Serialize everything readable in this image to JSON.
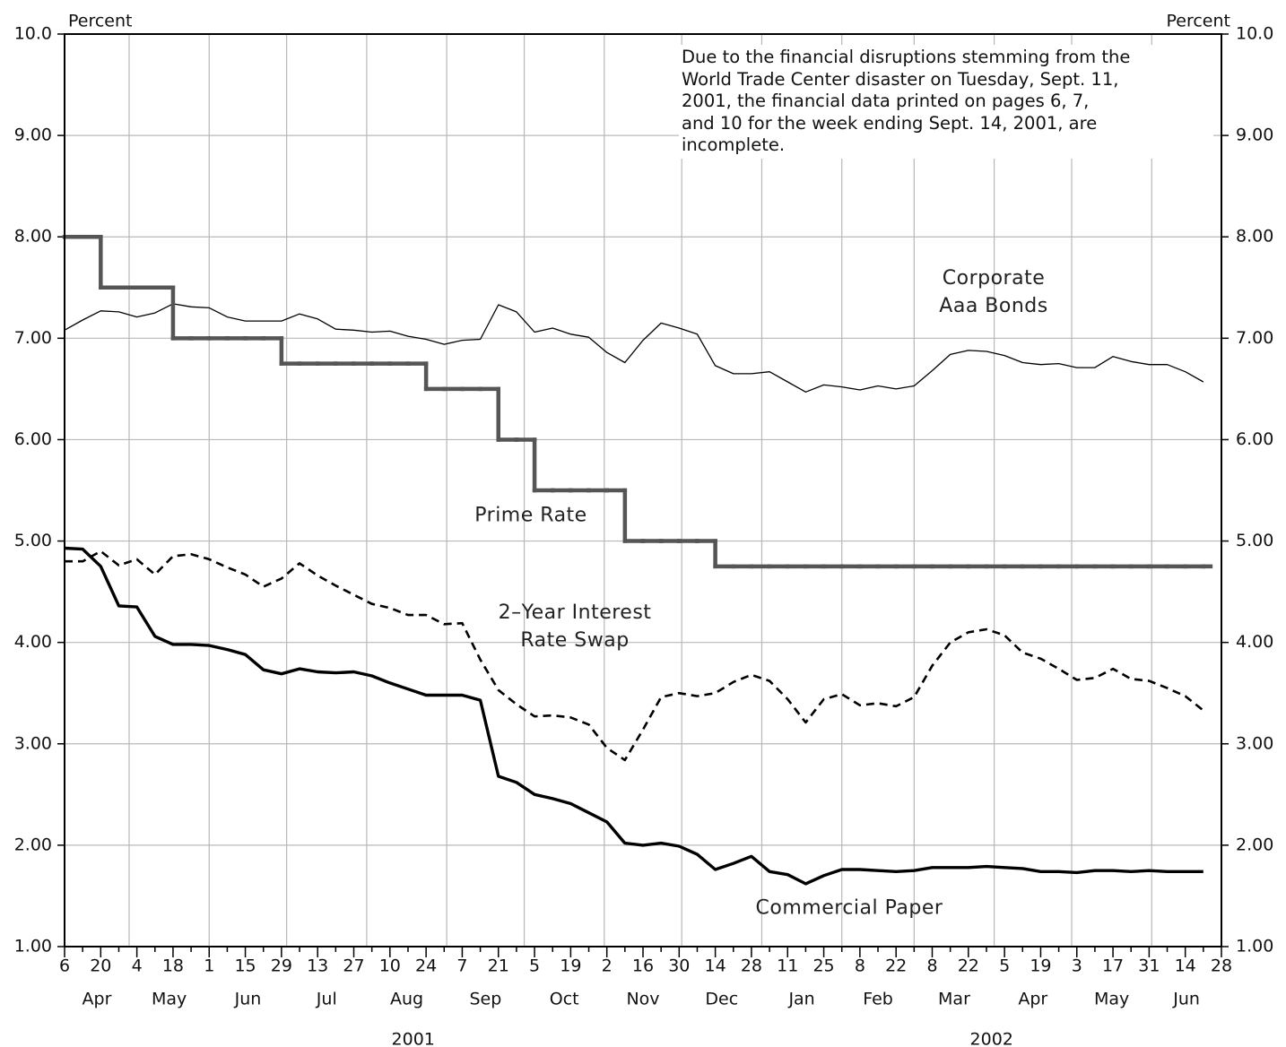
{
  "chart_data": {
    "type": "line",
    "ylabel": "Percent",
    "y2label": "Percent",
    "annotation": "Due to the financial disruptions stemming from the\nWorld Trade Center disaster on Tuesday, Sept. 11,\n2001, the financial data printed on pages 6, 7,\nand 10 for the week ending Sept. 14, 2001, are\nincomplete.",
    "categories": [
      "6",
      null,
      "20",
      null,
      "4",
      null,
      "18",
      null,
      "1",
      null,
      "15",
      null,
      "29",
      null,
      "13",
      null,
      "27",
      null,
      "10",
      null,
      "24",
      null,
      "7",
      null,
      "21",
      null,
      "5",
      null,
      "19",
      null,
      "2",
      null,
      "16",
      null,
      "30",
      null,
      "14",
      null,
      "28",
      null,
      "11",
      null,
      "25",
      null,
      "8",
      null,
      "22",
      null,
      "8",
      null,
      "22",
      null,
      "5",
      null,
      "19",
      null,
      "3",
      null,
      "17",
      null,
      "31",
      null,
      "14",
      null,
      "28"
    ],
    "x_groups": [
      {
        "year": "2001",
        "months": [
          "Apr",
          "May",
          "Jun",
          "Jul",
          "Aug",
          "Sep",
          "Oct",
          "Nov",
          "Dec"
        ]
      },
      {
        "year": "2002",
        "months": [
          "Jan",
          "Feb",
          "Mar",
          "Apr",
          "May",
          "Jun"
        ]
      }
    ],
    "ylim": [
      1,
      10
    ],
    "yticks": [
      {
        "value": 1,
        "label": "1.00"
      },
      {
        "value": 2,
        "label": "2.00"
      },
      {
        "value": 3,
        "label": "3.00"
      },
      {
        "value": 4,
        "label": "4.00"
      },
      {
        "value": 5,
        "label": "5.00"
      },
      {
        "value": 6,
        "label": "6.00"
      },
      {
        "value": 7,
        "label": "7.00"
      },
      {
        "value": 8,
        "label": "8.00"
      },
      {
        "value": 9,
        "label": "9.00"
      },
      {
        "value": 10,
        "label": "10.0"
      }
    ],
    "y2lim": [
      1,
      10
    ],
    "y2ticks": [
      {
        "value": 1,
        "label": "1.00"
      },
      {
        "value": 2,
        "label": "2.00"
      },
      {
        "value": 3,
        "label": "3.00"
      },
      {
        "value": 4,
        "label": "4.00"
      },
      {
        "value": 5,
        "label": "5.00"
      },
      {
        "value": 6,
        "label": "6.00"
      },
      {
        "value": 7,
        "label": "7.00"
      },
      {
        "value": 8,
        "label": "8.00"
      },
      {
        "value": 9,
        "label": "9.00"
      },
      {
        "value": 10,
        "label": "10.0"
      }
    ],
    "grid": true,
    "series": [
      {
        "name": "Corporate\nAaa Bonds",
        "color": "#000000",
        "linestyle": "solid",
        "values": [
          7.08,
          7.18,
          7.27,
          7.26,
          7.21,
          7.25,
          7.34,
          7.31,
          7.3,
          7.21,
          7.17,
          7.17,
          7.17,
          7.24,
          7.19,
          7.09,
          7.08,
          7.06,
          7.07,
          7.02,
          6.99,
          6.94,
          6.98,
          6.99,
          7.33,
          7.26,
          7.06,
          7.1,
          7.04,
          7.01,
          6.86,
          6.76,
          6.98,
          7.15,
          7.1,
          7.04,
          6.73,
          6.65,
          6.65,
          6.67,
          6.57,
          6.47,
          6.54,
          6.52,
          6.49,
          6.53,
          6.5,
          6.53,
          6.68,
          6.84,
          6.88,
          6.87,
          6.83,
          6.76,
          6.74,
          6.75,
          6.71,
          6.71,
          6.82,
          6.77,
          6.74,
          6.74,
          6.67,
          6.57,
          null
        ]
      },
      {
        "name": "Prime Rate",
        "color": "#555555",
        "linestyle": "solid",
        "drawstyle": "steps-post",
        "values": [
          8.0,
          8.0,
          7.5,
          7.5,
          7.5,
          7.5,
          7.0,
          7.0,
          7.0,
          7.0,
          7.0,
          7.0,
          6.75,
          6.75,
          6.75,
          6.75,
          6.75,
          6.75,
          6.75,
          6.75,
          6.5,
          6.5,
          6.5,
          6.5,
          6.0,
          6.0,
          5.5,
          5.5,
          5.5,
          5.5,
          5.5,
          5.0,
          5.0,
          5.0,
          5.0,
          5.0,
          4.75,
          4.75,
          4.75,
          4.75,
          4.75,
          4.75,
          4.75,
          4.75,
          4.75,
          4.75,
          4.75,
          4.75,
          4.75,
          4.75,
          4.75,
          4.75,
          4.75,
          4.75,
          4.75,
          4.75,
          4.75,
          4.75,
          4.75,
          4.75,
          4.75,
          4.75,
          4.75,
          4.75,
          null
        ]
      },
      {
        "name": "2–Year Interest\nRate Swap",
        "color": "#000000",
        "linestyle": "dashed",
        "values": [
          4.8,
          4.8,
          4.9,
          4.76,
          4.82,
          4.67,
          4.85,
          4.87,
          4.82,
          4.74,
          4.67,
          4.55,
          4.63,
          4.78,
          4.66,
          4.56,
          4.47,
          4.38,
          4.34,
          4.27,
          4.27,
          4.18,
          4.19,
          3.83,
          3.53,
          3.39,
          3.27,
          3.28,
          3.26,
          3.19,
          2.96,
          2.84,
          3.14,
          3.46,
          3.5,
          3.47,
          3.5,
          3.61,
          3.68,
          3.62,
          3.44,
          3.21,
          3.44,
          3.49,
          3.38,
          3.4,
          3.37,
          3.46,
          3.77,
          4.0,
          4.1,
          4.13,
          4.07,
          3.9,
          3.84,
          3.74,
          3.63,
          3.65,
          3.74,
          3.64,
          3.62,
          3.55,
          3.47,
          3.33,
          null
        ]
      },
      {
        "name": "Commercial Paper",
        "color": "#000000",
        "linestyle": "solid",
        "values": [
          4.93,
          4.92,
          4.75,
          4.36,
          4.35,
          4.06,
          3.98,
          3.98,
          3.97,
          3.93,
          3.88,
          3.73,
          3.69,
          3.74,
          3.71,
          3.7,
          3.71,
          3.67,
          3.6,
          3.54,
          3.48,
          3.48,
          3.48,
          3.43,
          2.68,
          2.62,
          2.5,
          2.46,
          2.41,
          2.32,
          2.23,
          2.02,
          2.0,
          2.02,
          1.99,
          1.91,
          1.76,
          1.82,
          1.89,
          1.74,
          1.71,
          1.62,
          1.7,
          1.76,
          1.76,
          1.75,
          1.74,
          1.75,
          1.78,
          1.78,
          1.78,
          1.79,
          1.78,
          1.77,
          1.74,
          1.74,
          1.73,
          1.75,
          1.75,
          1.74,
          1.75,
          1.74,
          1.74,
          1.74,
          null
        ]
      }
    ]
  }
}
